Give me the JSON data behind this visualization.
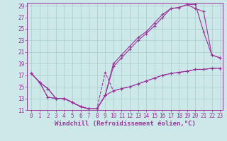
{
  "xlabel": "Windchill (Refroidissement éolien,°C)",
  "xlim": [
    0,
    23
  ],
  "ylim": [
    11,
    29
  ],
  "xticks": [
    0,
    1,
    2,
    3,
    4,
    5,
    6,
    7,
    8,
    9,
    10,
    11,
    12,
    13,
    14,
    15,
    16,
    17,
    18,
    19,
    20,
    21,
    22,
    23
  ],
  "yticks": [
    11,
    13,
    15,
    17,
    19,
    21,
    23,
    25,
    27,
    29
  ],
  "line1_x": [
    0,
    1,
    2,
    3,
    4,
    5,
    6,
    7,
    8,
    9,
    10,
    11,
    12,
    13,
    14,
    15,
    16,
    17,
    18,
    19,
    20,
    21,
    22,
    23
  ],
  "line1_y": [
    17.3,
    15.8,
    14.7,
    13.0,
    13.0,
    12.3,
    11.6,
    11.2,
    11.2,
    13.5,
    19.0,
    20.5,
    22.0,
    23.5,
    24.5,
    26.0,
    27.5,
    28.5,
    28.7,
    29.2,
    29.2,
    24.5,
    20.5,
    20.0
  ],
  "line2_x": [
    0,
    1,
    2,
    3,
    4,
    5,
    6,
    7,
    8,
    9,
    10,
    11,
    12,
    13,
    14,
    15,
    16,
    17,
    18,
    19,
    20,
    21,
    22,
    23
  ],
  "line2_y": [
    17.3,
    15.8,
    14.7,
    13.0,
    13.0,
    12.3,
    11.6,
    11.2,
    11.2,
    13.5,
    18.5,
    20.0,
    21.5,
    23.0,
    24.2,
    25.5,
    27.0,
    28.5,
    28.7,
    29.2,
    28.5,
    28.0,
    20.5,
    20.0
  ],
  "line3_x": [
    0,
    1,
    2,
    3,
    4,
    5,
    6,
    7,
    8,
    9,
    10,
    11,
    12,
    13,
    14,
    15,
    16,
    17,
    18,
    19,
    20,
    21,
    22,
    23
  ],
  "line3_y": [
    17.3,
    15.8,
    13.2,
    13.0,
    13.0,
    12.3,
    11.6,
    11.2,
    11.2,
    17.5,
    14.3,
    14.7,
    15.0,
    15.5,
    16.0,
    16.5,
    17.0,
    17.3,
    17.5,
    17.7,
    18.0,
    18.0,
    18.2,
    18.2
  ],
  "line4_x": [
    0,
    1,
    2,
    3,
    4,
    5,
    6,
    7,
    8,
    9,
    10,
    11,
    12,
    13,
    14,
    15,
    16,
    17,
    18,
    19,
    20,
    21,
    22,
    23
  ],
  "line4_y": [
    17.3,
    15.8,
    13.2,
    13.0,
    13.0,
    12.3,
    11.6,
    11.2,
    11.2,
    13.5,
    14.3,
    14.7,
    15.0,
    15.5,
    16.0,
    16.5,
    17.0,
    17.3,
    17.5,
    17.7,
    18.0,
    18.0,
    18.2,
    18.2
  ],
  "line_color": "#993399",
  "bg_color": "#cce8e8",
  "grid_color": "#aacccc",
  "tick_label_fontsize": 5.5,
  "xlabel_fontsize": 6.5
}
